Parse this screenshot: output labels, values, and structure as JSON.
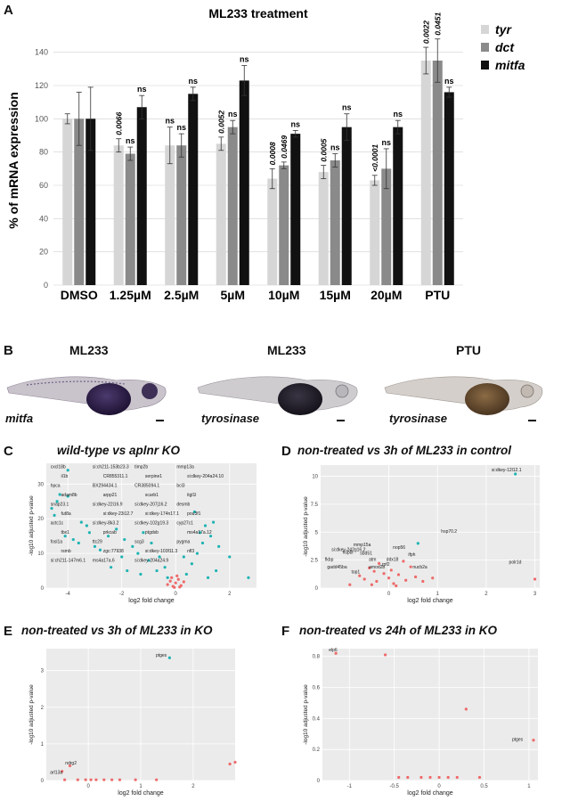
{
  "panel_a": {
    "letter": "A",
    "chart_data": {
      "type": "bar",
      "title": "ML233 treatment",
      "ylabel": "% of mRNA expression",
      "xlabel": "",
      "ylim": [
        0,
        150
      ],
      "yticks": [
        0,
        20,
        40,
        60,
        80,
        100,
        120,
        140
      ],
      "categories": [
        "DMSO",
        "1.25µM",
        "2.5µM",
        "5µM",
        "10µM",
        "15µM",
        "20µM",
        "PTU"
      ],
      "series": [
        {
          "name": "tyr",
          "color": "#d6d6d6",
          "values": [
            100,
            84,
            84,
            85,
            64,
            68,
            63,
            135
          ],
          "errors": [
            3,
            4,
            11,
            4,
            6,
            4,
            3,
            8
          ],
          "annotations": [
            "",
            "0.0066",
            "ns",
            "0.0052",
            "0.0008",
            "0.0005",
            "<0.0001",
            "0.0022"
          ]
        },
        {
          "name": "dct",
          "color": "#8a8a8a",
          "values": [
            100,
            79,
            84,
            95,
            72,
            75,
            70,
            135
          ],
          "errors": [
            16,
            4,
            7,
            4,
            2,
            4,
            12,
            13
          ],
          "annotations": [
            "",
            "ns",
            "ns",
            "ns",
            "0.0469",
            "ns",
            "ns",
            "0.0451"
          ]
        },
        {
          "name": "mitfa",
          "color": "#111111",
          "values": [
            100,
            107,
            115,
            123,
            91,
            95,
            95,
            116
          ],
          "errors": [
            19,
            7,
            4,
            9,
            2,
            8,
            4,
            3
          ],
          "annotations": [
            "",
            "ns",
            "ns",
            "ns",
            "ns",
            "ns",
            "ns",
            "ns"
          ]
        }
      ]
    }
  },
  "panel_b": {
    "letter": "B",
    "photos": [
      {
        "label": "ML233",
        "caption": "mitfa"
      },
      {
        "label": "ML233",
        "caption": "tyrosinase"
      },
      {
        "label": "PTU",
        "caption": "tyrosinase"
      }
    ]
  },
  "volcano_common": {
    "xlabel": "log2 fold change",
    "ylabel_c": "-log10 adjusted p-value",
    "ylabel_d": "-log10 adjusted p-value",
    "ylabel_ef": "-log10 adjusted p-value"
  },
  "panel_c": {
    "letter": "C",
    "title": "wild-type vs aplnr KO",
    "chart_data": {
      "type": "scatter",
      "xlabel": "log2 fold change",
      "ylabel": "-log10 adjusted p-value",
      "xlim": [
        -4.8,
        3
      ],
      "ylim": [
        0,
        36
      ],
      "xticks": [
        -4,
        -2,
        0,
        2
      ],
      "yticks": [
        0,
        10,
        20,
        30
      ],
      "series": [
        {
          "name": "significant",
          "color": "#1fb3b3",
          "points": [
            [
              -4.0,
              34
            ],
            [
              -4.3,
              27
            ],
            [
              -4.4,
              25
            ],
            [
              -4.0,
              26.5
            ],
            [
              -4.6,
              23
            ],
            [
              -4.5,
              21
            ],
            [
              -3.5,
              19
            ],
            [
              -3.3,
              18
            ],
            [
              -3.2,
              16
            ],
            [
              -4.1,
              15
            ],
            [
              -3.8,
              14
            ],
            [
              -3.6,
              13
            ],
            [
              -3.0,
              12
            ],
            [
              -2.8,
              11
            ],
            [
              -2.5,
              15
            ],
            [
              -2.2,
              17
            ],
            [
              -1.9,
              14
            ],
            [
              -1.6,
              12
            ],
            [
              -1.2,
              16
            ],
            [
              -0.9,
              13
            ],
            [
              -1.4,
              10
            ],
            [
              -2.0,
              9
            ],
            [
              -1.0,
              8
            ],
            [
              -0.6,
              9
            ],
            [
              -0.4,
              6
            ],
            [
              -0.7,
              5
            ],
            [
              -1.3,
              4
            ],
            [
              -1.8,
              5
            ],
            [
              -2.4,
              6
            ],
            [
              -0.3,
              3
            ],
            [
              0.4,
              4
            ],
            [
              0.6,
              7
            ],
            [
              0.8,
              10
            ],
            [
              1.0,
              13
            ],
            [
              1.1,
              18
            ],
            [
              0.7,
              22
            ],
            [
              1.3,
              15
            ],
            [
              1.6,
              12
            ],
            [
              2.0,
              9
            ],
            [
              1.5,
              5
            ],
            [
              1.2,
              3
            ],
            [
              2.7,
              3
            ],
            [
              0.3,
              9
            ],
            [
              0.9,
              16
            ],
            [
              1.4,
              19
            ]
          ]
        },
        {
          "name": "non-significant",
          "color": "#ee6a6a",
          "points": [
            [
              -0.3,
              1
            ],
            [
              -0.2,
              2
            ],
            [
              -0.1,
              0.5
            ],
            [
              0,
              1.5
            ],
            [
              0.1,
              2.5
            ],
            [
              0.2,
              0.7
            ],
            [
              0.3,
              1.8
            ],
            [
              -0.15,
              3
            ],
            [
              0.05,
              3.5
            ],
            [
              0.15,
              0.3
            ],
            [
              -0.05,
              0.2
            ]
          ]
        }
      ],
      "labels": [
        "cxcl18b",
        "si:ch211-153b23.3",
        "timp2b",
        "mmp13a",
        "il1b",
        "CR855311.1",
        "serpine1",
        "si:dkey-204a24.10",
        "hpca",
        "BX294434.1",
        "CR385094.1",
        "bcl3",
        "adam8b",
        "arpp21",
        "scarb1",
        "itgl1l",
        "snap23.1",
        "si:dkey-22i16.9",
        "si:dkey-207j16.2",
        "desmb",
        "fut8a",
        "si:dkey-23i12.7",
        "si:dkey-174n17.1",
        "pou3f1",
        "actc1c",
        "si:dkey-8k3.2",
        "si:dkey-102g19.3",
        "cyp27c1",
        "tbx1",
        "prkcab",
        "ptgdsb",
        "ms4a17a.12",
        "fosl1a",
        "ttc29",
        "scg3",
        "pygma",
        "rsmb",
        "zgc:77938",
        "si:dkey-103f11.3",
        "nfl3",
        "si:ch211-147m6.1",
        "ms4a17a.6",
        "si:dkey-204a24.9"
      ]
    }
  },
  "panel_d": {
    "letter": "D",
    "title": "non-treated vs 3h of ML233 in control",
    "chart_data": {
      "type": "scatter",
      "xlabel": "log2 fold change",
      "ylabel": "-log10 adjusted p-value",
      "xlim": [
        -1.4,
        3.1
      ],
      "ylim": [
        0,
        11
      ],
      "xticks": [
        0,
        1,
        2,
        3
      ],
      "yticks": [
        0,
        2.5,
        5,
        7.5,
        10
      ],
      "series": [
        {
          "name": "significant",
          "color": "#1fb3b3",
          "points": [
            [
              2.6,
              10.2
            ],
            [
              0.6,
              4.0
            ]
          ]
        },
        {
          "name": "non-significant",
          "color": "#ee6a6a",
          "points": [
            [
              -0.8,
              0.3
            ],
            [
              -0.6,
              1.1
            ],
            [
              -0.5,
              0.8
            ],
            [
              -0.4,
              1.8
            ],
            [
              -0.3,
              1.5
            ],
            [
              -0.25,
              0.6
            ],
            [
              -0.2,
              2.2
            ],
            [
              -0.1,
              1.3
            ],
            [
              0.0,
              0.9
            ],
            [
              0.05,
              1.6
            ],
            [
              0.1,
              0.4
            ],
            [
              0.2,
              1.2
            ],
            [
              0.3,
              2.4
            ],
            [
              0.35,
              0.7
            ],
            [
              0.45,
              1.9
            ],
            [
              0.55,
              1.0
            ],
            [
              0.7,
              0.6
            ],
            [
              0.9,
              0.9
            ],
            [
              3.0,
              0.8
            ],
            [
              0.15,
              0.2
            ],
            [
              -0.35,
              0.3
            ]
          ]
        }
      ],
      "labels": [
        "si:dkey-12l12.1",
        "hsp70.2",
        "mmp15a",
        "nop56",
        "hspbl",
        "fkbp",
        "sbd51",
        "atm",
        "ddx18",
        "ifph",
        "gadd45ba",
        "top1",
        "rpf2",
        "nucb2a",
        "si:dkey-242g16.2",
        "amod2b",
        "polr1d"
      ]
    }
  },
  "panel_e": {
    "letter": "E",
    "title": "non-treated vs 3h of ML233 in KO",
    "chart_data": {
      "type": "scatter",
      "xlabel": "log2 fold change",
      "ylabel": "-log10 adjusted p-value",
      "xlim": [
        -0.8,
        2.8
      ],
      "ylim": [
        0,
        3.6
      ],
      "xticks": [
        0,
        1,
        2
      ],
      "yticks": [
        0,
        1,
        2,
        3
      ],
      "series": [
        {
          "name": "significant",
          "color": "#1fb3b3",
          "points": [
            [
              1.55,
              3.35
            ]
          ]
        },
        {
          "name": "non-significant",
          "color": "#ee6a6a",
          "points": [
            [
              -0.5,
              0.25
            ],
            [
              -0.35,
              0.4
            ],
            [
              -0.2,
              0.02
            ],
            [
              -0.05,
              0.02
            ],
            [
              0.05,
              0.02
            ],
            [
              0.15,
              0.02
            ],
            [
              0.3,
              0.02
            ],
            [
              0.45,
              0.02
            ],
            [
              0.6,
              0.02
            ],
            [
              0.9,
              0.02
            ],
            [
              1.3,
              0.02
            ],
            [
              2.7,
              0.45
            ],
            [
              2.8,
              0.5
            ],
            [
              -0.45,
              0.02
            ]
          ]
        }
      ],
      "labels": [
        "ptges",
        "ndrg2",
        "arl13a"
      ]
    }
  },
  "panel_f": {
    "letter": "F",
    "title": "non-treated vs 24h of ML233 in KO",
    "chart_data": {
      "type": "scatter",
      "xlabel": "log2 fold change",
      "ylabel": "-log10 adjusted p-value",
      "xlim": [
        -1.3,
        1.1
      ],
      "ylim": [
        0,
        0.85
      ],
      "xticks": [
        -1.0,
        -0.5,
        0.0,
        0.5,
        1.0
      ],
      "yticks": [
        0,
        0.2,
        0.4,
        0.6,
        0.8
      ],
      "series": [
        {
          "name": "non-significant",
          "color": "#ee6a6a",
          "points": [
            [
              -1.15,
              0.82
            ],
            [
              -0.6,
              0.81
            ],
            [
              0.3,
              0.46
            ],
            [
              1.05,
              0.26
            ],
            [
              -0.35,
              0.02
            ],
            [
              -0.2,
              0.02
            ],
            [
              -0.1,
              0.02
            ],
            [
              0.0,
              0.02
            ],
            [
              0.1,
              0.02
            ],
            [
              0.2,
              0.02
            ],
            [
              0.45,
              0.02
            ],
            [
              -0.45,
              0.02
            ]
          ]
        }
      ],
      "labels": [
        "elp6",
        "ptges"
      ]
    }
  }
}
